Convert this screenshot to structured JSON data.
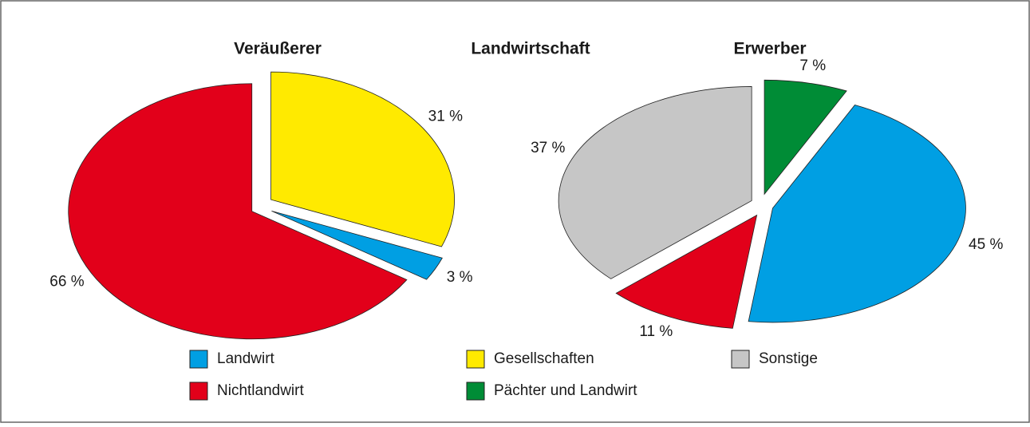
{
  "title": "Landwirtschaft",
  "chart_data": [
    {
      "type": "pie",
      "title": "Veräußerer",
      "categories": [
        "Gesellschaften",
        "Landwirt",
        "Nichtlandwirt"
      ],
      "values": [
        31,
        3,
        66
      ],
      "value_labels": [
        "31 %",
        "3 %",
        "66 %"
      ],
      "colors": [
        "#ffea00",
        "#009fe3",
        "#e2001a"
      ]
    },
    {
      "type": "pie",
      "title": "Erwerber",
      "categories": [
        "Pächter und Landwirt",
        "Landwirt",
        "Nichtlandwirt",
        "Sonstige"
      ],
      "values": [
        7,
        45,
        11,
        37
      ],
      "value_labels": [
        "7 %",
        "45 %",
        "11 %",
        "37 %"
      ],
      "colors": [
        "#008c36",
        "#009fe3",
        "#e2001a",
        "#c6c6c6"
      ]
    }
  ],
  "legend": [
    {
      "name": "Landwirt",
      "color": "#009fe3"
    },
    {
      "name": "Gesellschaften",
      "color": "#ffea00"
    },
    {
      "name": "Sonstige",
      "color": "#c6c6c6"
    },
    {
      "name": "Nichtlandwirt",
      "color": "#e2001a"
    },
    {
      "name": "Pächter und Landwirt",
      "color": "#008c36"
    }
  ]
}
